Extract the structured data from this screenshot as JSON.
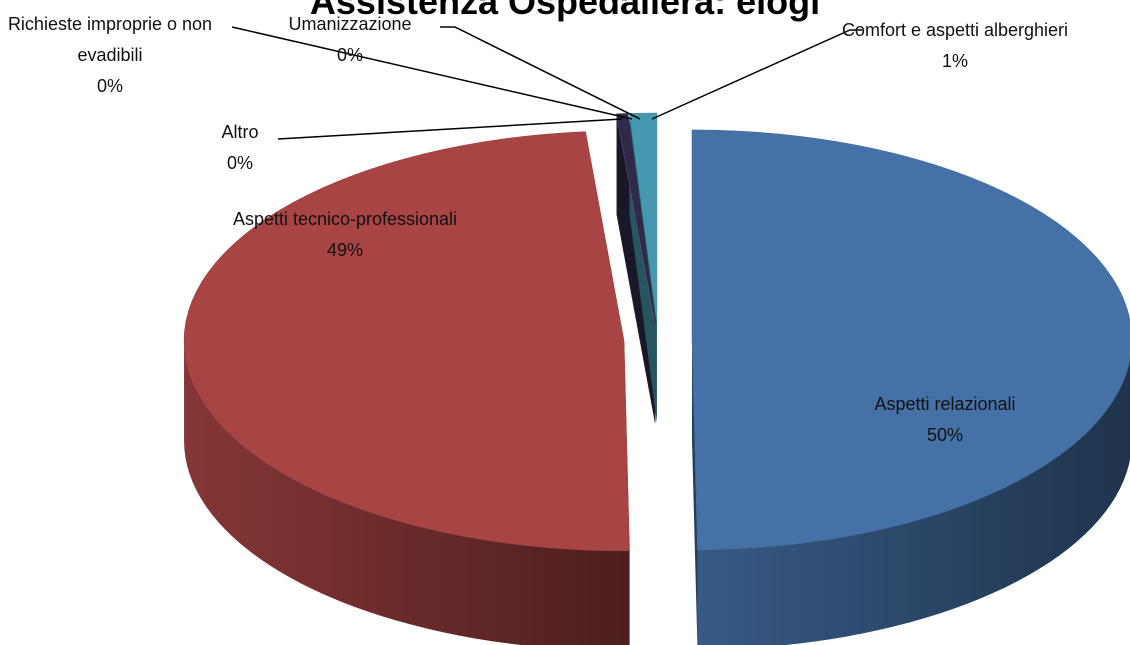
{
  "chart_data": {
    "type": "pie3d",
    "title": "Assistenza Ospedaliera: elogi",
    "categories": [
      "Aspetti relazionali",
      "Aspetti tecnico-professionali",
      "Altro",
      "Richieste improprie o non evadibili",
      "Umanizzazione",
      "Comfort e aspetti alberghieri"
    ],
    "values": [
      50,
      49,
      0,
      0,
      0.4,
      1
    ],
    "value_labels": [
      "50%",
      "49%",
      "0%",
      "0%",
      "0%",
      "1%"
    ],
    "colors": [
      "#4571a6",
      "#a84443",
      "#8aa64d",
      "#6c4f8c",
      "#2f2a4a",
      "#4598b0"
    ]
  }
}
